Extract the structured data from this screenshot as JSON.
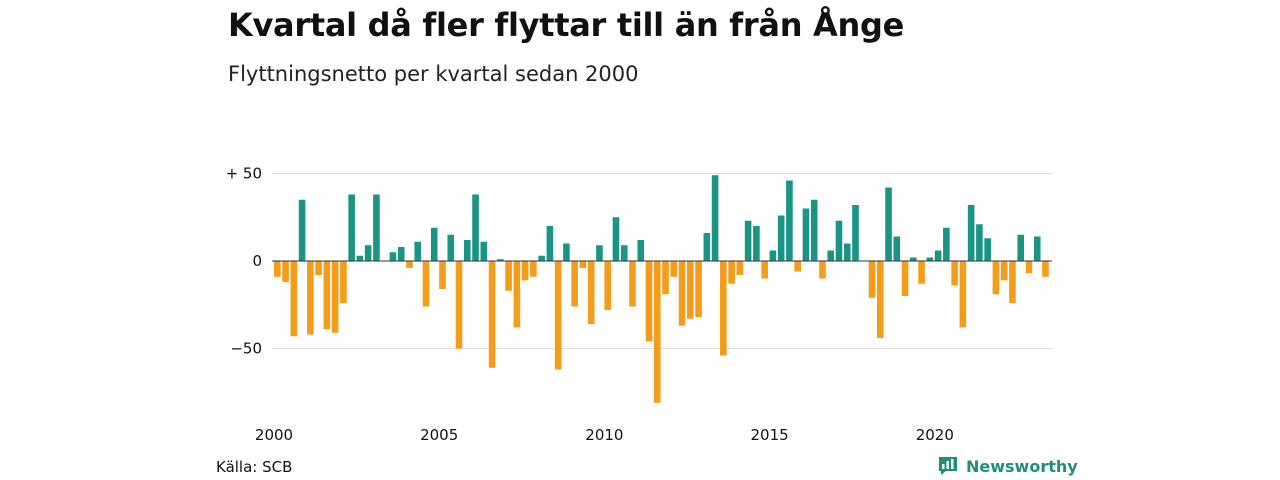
{
  "header": {
    "title": "Kvartal då fler flyttar till än från Ånge",
    "subtitle": "Flyttningsnetto per kvartal sedan 2000"
  },
  "footer": {
    "source": "Källa: SCB",
    "brand": "Newsworthy",
    "brand_icon": "newsworthy-logo-icon"
  },
  "colors": {
    "positive": "#1a9484",
    "negative": "#f59c1a",
    "grid": "#dddddd",
    "zero_line": "#333333",
    "brand": "#1e8f7e"
  },
  "chart_data": {
    "type": "bar",
    "title": "Kvartal då fler flyttar till än från Ånge",
    "subtitle": "Flyttningsnetto per kvartal sedan 2000",
    "x_start": "2000-Q1",
    "ylim": [
      -85,
      55
    ],
    "y_ticks": [
      50,
      0,
      -50
    ],
    "y_tick_labels": [
      "+ 50",
      "0",
      "−50"
    ],
    "x_tick_labels": [
      {
        "label": "2000",
        "year": 2000
      },
      {
        "label": "2005",
        "year": 2005
      },
      {
        "label": "2010",
        "year": 2010
      },
      {
        "label": "2015",
        "year": 2015
      },
      {
        "label": "2020",
        "year": 2020
      }
    ],
    "grid": true,
    "values": [
      -9,
      -12,
      -43,
      35,
      -42,
      -8,
      -39,
      -41,
      -24,
      38,
      3,
      9,
      38,
      0,
      5,
      8,
      -4,
      11,
      -26,
      19,
      -16,
      15,
      -50,
      12,
      38,
      11,
      -61,
      1,
      -17,
      -38,
      -11,
      -9,
      3,
      20,
      -62,
      10,
      -26,
      -4,
      -36,
      9,
      -28,
      25,
      9,
      -26,
      12,
      -46,
      -81,
      -19,
      -9,
      -37,
      -33,
      -32,
      16,
      49,
      -54,
      -13,
      -8,
      23,
      20,
      -10,
      6,
      26,
      46,
      -6,
      30,
      35,
      -10,
      6,
      23,
      10,
      32,
      0,
      -21,
      -44,
      42,
      14,
      -20,
      2,
      -13,
      2,
      6,
      19,
      -14,
      -38,
      32,
      21,
      13,
      -19,
      -11,
      -24,
      15,
      -7,
      14,
      -9
    ]
  }
}
